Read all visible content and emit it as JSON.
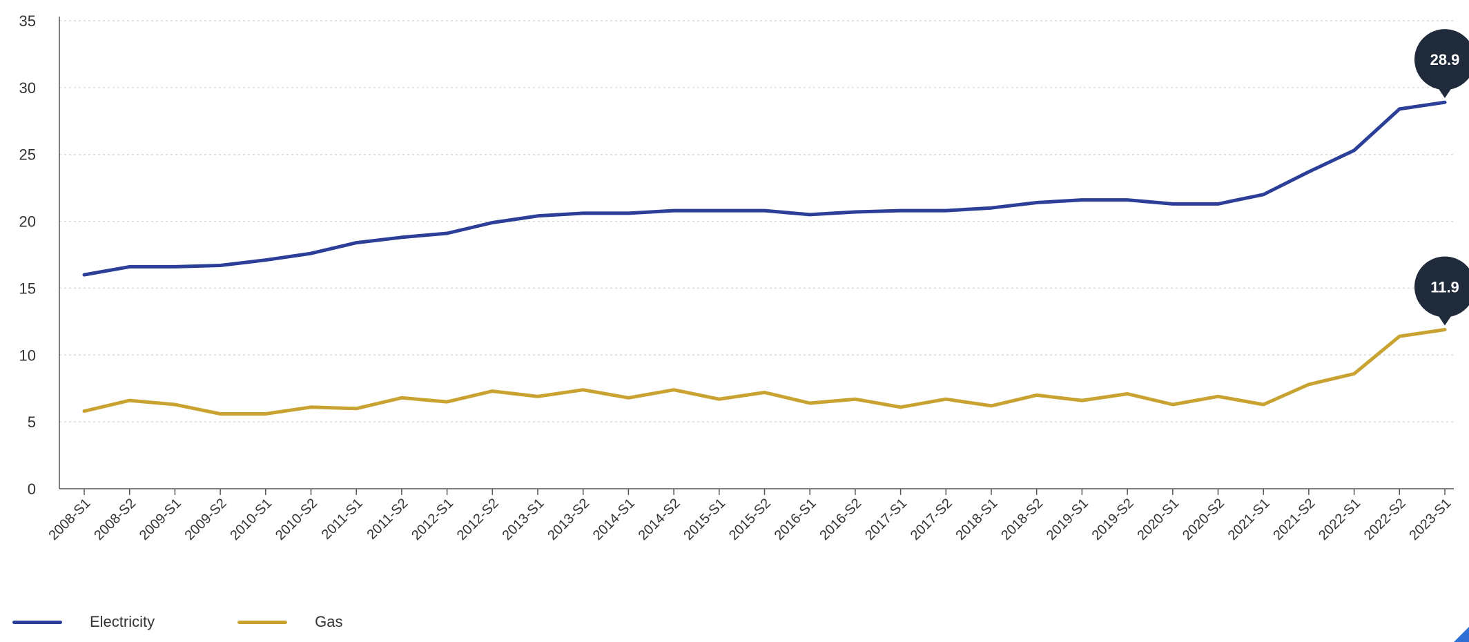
{
  "colors": {
    "electricity": "#2b3f98",
    "gas": "#c9a332",
    "callout": "#1f2a3a",
    "grid": "#d9d9d9",
    "axis": "#555555"
  },
  "chart_data": {
    "type": "line",
    "categories": [
      "2008-S1",
      "2008-S2",
      "2009-S1",
      "2009-S2",
      "2010-S1",
      "2010-S2",
      "2011-S1",
      "2011-S2",
      "2012-S1",
      "2012-S2",
      "2013-S1",
      "2013-S2",
      "2014-S1",
      "2014-S2",
      "2015-S1",
      "2015-S2",
      "2016-S1",
      "2016-S2",
      "2017-S1",
      "2017-S2",
      "2018-S1",
      "2018-S2",
      "2019-S1",
      "2019-S2",
      "2020-S1",
      "2020-S2",
      "2021-S1",
      "2021-S2",
      "2022-S1",
      "2022-S2",
      "2023-S1"
    ],
    "series": [
      {
        "name": "Electricity",
        "color": "#2b3f98",
        "values": [
          16.0,
          16.6,
          16.6,
          16.7,
          17.1,
          17.6,
          18.4,
          18.8,
          19.1,
          19.9,
          20.4,
          20.6,
          20.6,
          20.8,
          20.8,
          20.8,
          20.5,
          20.7,
          20.8,
          20.8,
          21.0,
          21.4,
          21.6,
          21.6,
          21.3,
          21.3,
          22.0,
          23.7,
          25.3,
          28.4,
          28.9
        ]
      },
      {
        "name": "Gas",
        "color": "#c9a332",
        "values": [
          5.8,
          6.6,
          6.3,
          5.6,
          5.6,
          6.1,
          6.0,
          6.8,
          6.5,
          7.3,
          6.9,
          7.4,
          6.8,
          7.4,
          6.7,
          7.2,
          6.4,
          6.7,
          6.1,
          6.7,
          6.2,
          7.0,
          6.6,
          7.1,
          6.3,
          6.9,
          6.3,
          7.8,
          8.6,
          11.4,
          11.9
        ]
      }
    ],
    "yticks": [
      0,
      5,
      10,
      15,
      20,
      25,
      30,
      35
    ],
    "ylim": [
      0,
      35
    ],
    "grid": true,
    "legend_position": "bottom-left",
    "annotations": [
      {
        "series": "Electricity",
        "category": "2023-S1",
        "text": "28.9"
      },
      {
        "series": "Gas",
        "category": "2023-S1",
        "text": "11.9"
      }
    ]
  },
  "legend": {
    "electricity_label": "Electricity",
    "gas_label": "Gas"
  }
}
